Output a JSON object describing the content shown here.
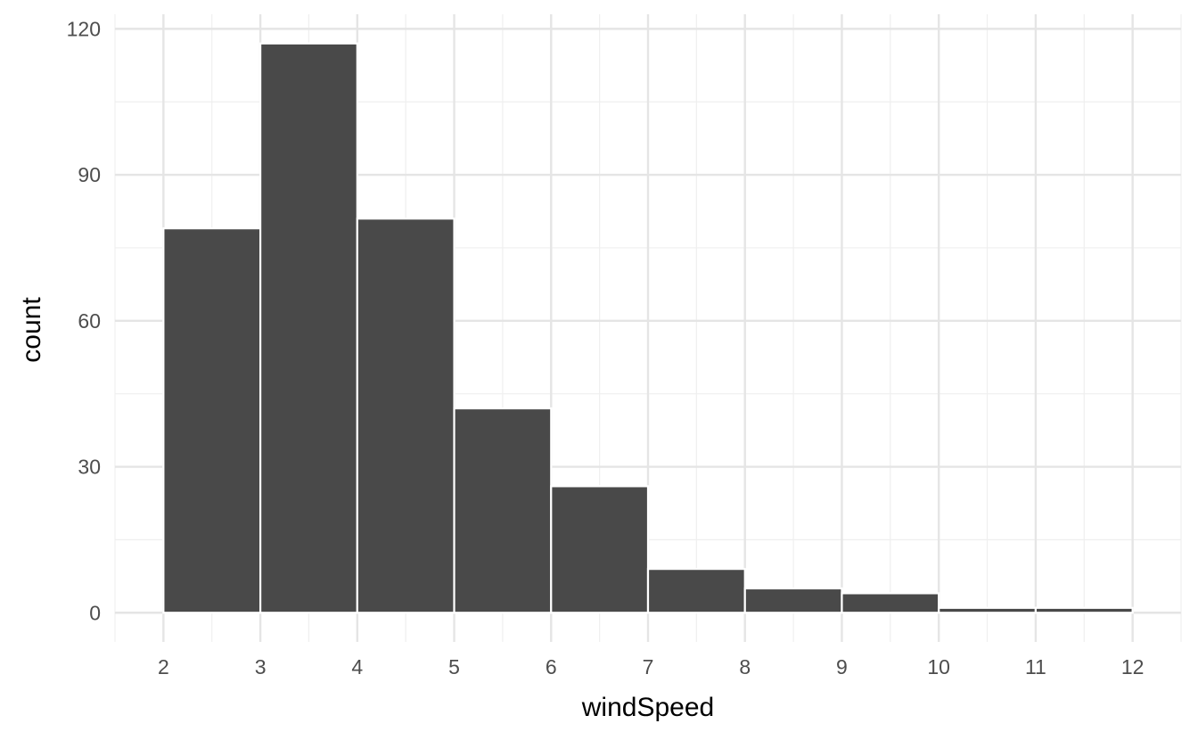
{
  "chart_data": {
    "type": "bar",
    "subtype": "histogram",
    "title": "",
    "xlabel": "windSpeed",
    "ylabel": "count",
    "bins": [
      {
        "x0": 2,
        "x1": 3,
        "count": 79
      },
      {
        "x0": 3,
        "x1": 4,
        "count": 117
      },
      {
        "x0": 4,
        "x1": 5,
        "count": 81
      },
      {
        "x0": 5,
        "x1": 6,
        "count": 42
      },
      {
        "x0": 6,
        "x1": 7,
        "count": 26
      },
      {
        "x0": 7,
        "x1": 8,
        "count": 9
      },
      {
        "x0": 8,
        "x1": 9,
        "count": 5
      },
      {
        "x0": 9,
        "x1": 10,
        "count": 4
      },
      {
        "x0": 10,
        "x1": 11,
        "count": 1
      },
      {
        "x0": 11,
        "x1": 12,
        "count": 1
      }
    ],
    "xticks": [
      "2",
      "3",
      "4",
      "5",
      "6",
      "7",
      "8",
      "9",
      "10",
      "11",
      "12"
    ],
    "yticks": [
      "0",
      "30",
      "60",
      "90",
      "120"
    ],
    "xlim": [
      1.5,
      12.5
    ],
    "ylim": [
      -6,
      123
    ],
    "grid": true,
    "legend": "none",
    "colors": {
      "bar_fill": "#494949",
      "bar_outline": "#ffffff",
      "grid_major": "#e5e5e5",
      "grid_minor": "#efefef",
      "background": "#ffffff"
    }
  }
}
